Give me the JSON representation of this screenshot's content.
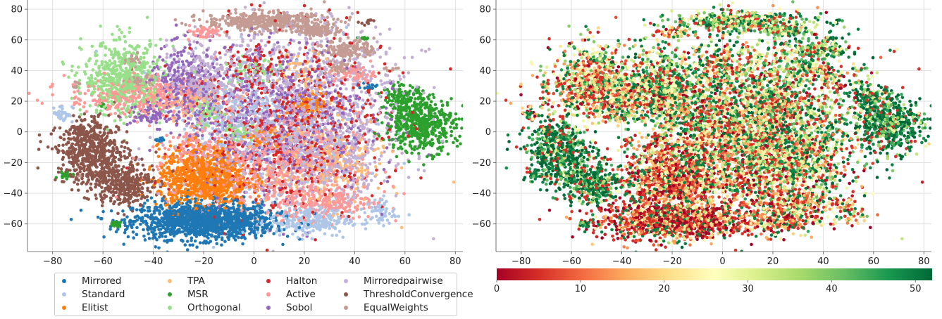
{
  "chart_data": [
    {
      "type": "scatter",
      "title": "",
      "xlabel": "",
      "ylabel": "",
      "xlim": [
        -90,
        83
      ],
      "ylim": [
        -78,
        86
      ],
      "xticks": [
        -80,
        -60,
        -40,
        -20,
        0,
        20,
        40,
        60,
        80
      ],
      "yticks": [
        -60,
        -40,
        -20,
        0,
        20,
        40,
        60,
        80
      ],
      "grid": true,
      "legend_position": "bottom",
      "series": [
        {
          "name": "Mirrored",
          "color": "#1f77b4",
          "clusters": [
            [
              -20,
              -58,
              14,
              6,
              1400
            ],
            [
              -37,
              -5,
              1.5,
              0.8,
              15
            ],
            [
              46,
              30,
              1.5,
              1,
              15
            ]
          ]
        },
        {
          "name": "Standard",
          "color": "#aec7e8",
          "clusters": [
            [
              -76,
              12,
              2,
              3,
              40
            ],
            [
              22,
              -58,
              8,
              5,
              250
            ],
            [
              5,
              0,
              20,
              25,
              300
            ],
            [
              50,
              -52,
              3,
              5,
              60
            ],
            [
              -10,
              15,
              10,
              8,
              120
            ]
          ]
        },
        {
          "name": "Elitist",
          "color": "#ff7f0e",
          "clusters": [
            [
              -20,
              -30,
              9,
              10,
              900
            ],
            [
              22,
              18,
              5,
              4,
              80
            ],
            [
              5,
              -5,
              4,
              4,
              40
            ]
          ]
        },
        {
          "name": "TPA",
          "color": "#ffbb78",
          "clusters": [
            [
              28,
              -20,
              12,
              14,
              300
            ],
            [
              -25,
              20,
              8,
              6,
              80
            ],
            [
              20,
              40,
              6,
              6,
              60
            ]
          ]
        },
        {
          "name": "MSR",
          "color": "#2ca02c",
          "clusters": [
            [
              66,
              5,
              7,
              9,
              500
            ],
            [
              59,
              22,
              4,
              4,
              120
            ],
            [
              -60,
              17,
              1,
              1,
              6
            ],
            [
              -75,
              -28,
              1.5,
              1,
              20
            ],
            [
              -55,
              -60,
              1.5,
              1,
              20
            ],
            [
              44,
              61,
              1.5,
              0.5,
              10
            ]
          ]
        },
        {
          "name": "Orthogonal",
          "color": "#98df8a",
          "clusters": [
            [
              -52,
              35,
              8,
              12,
              550
            ],
            [
              0,
              40,
              6,
              4,
              60
            ],
            [
              -18,
              12,
              4,
              5,
              60
            ],
            [
              -5,
              0,
              3,
              3,
              40
            ]
          ]
        },
        {
          "name": "Halton",
          "color": "#d62728",
          "clusters": [
            [
              12,
              5,
              20,
              30,
              700
            ],
            [
              0,
              45,
              4,
              5,
              40
            ]
          ]
        },
        {
          "name": "Active",
          "color": "#ff9896",
          "clusters": [
            [
              -44,
              23,
              15,
              6,
              400
            ],
            [
              5,
              -20,
              18,
              15,
              700
            ],
            [
              28,
              -45,
              10,
              6,
              250
            ],
            [
              -20,
              65,
              4,
              2,
              50
            ],
            [
              -25,
              -10,
              4,
              5,
              60
            ],
            [
              40,
              38,
              4,
              3,
              60
            ]
          ]
        },
        {
          "name": "Sobol",
          "color": "#9467bd",
          "clusters": [
            [
              10,
              10,
              18,
              25,
              700
            ],
            [
              -28,
              30,
              7,
              12,
              300
            ],
            [
              -42,
              10,
              4,
              3,
              50
            ]
          ]
        },
        {
          "name": "Mirroredpairwise",
          "color": "#c5b0d5",
          "clusters": [
            [
              15,
              15,
              22,
              28,
              1200
            ],
            [
              -20,
              35,
              7,
              10,
              200
            ],
            [
              30,
              -20,
              10,
              12,
              250
            ]
          ]
        },
        {
          "name": "ThresholdConvergence",
          "color": "#8c564b",
          "clusters": [
            [
              -64,
              -14,
              7,
              10,
              550
            ],
            [
              -52,
              -34,
              6,
              7,
              350
            ],
            [
              -68,
              1,
              3,
              3,
              60
            ],
            [
              -74,
              -13,
              1.5,
              1,
              15
            ],
            [
              45,
              72,
              1.5,
              1,
              10
            ]
          ]
        },
        {
          "name": "EqualWeights",
          "color": "#c49c94",
          "clusters": [
            [
              5,
              72,
              12,
              3,
              450
            ],
            [
              26,
              66,
              4,
              2,
              100
            ],
            [
              38,
              54,
              5,
              3,
              150
            ],
            [
              35,
              42,
              3,
              2,
              50
            ],
            [
              -46,
              33,
              3,
              2,
              40
            ],
            [
              -48,
              47,
              2,
              2,
              20
            ],
            [
              -70,
              31,
              1,
              1.5,
              10
            ],
            [
              -70,
              -28,
              1,
              1,
              5
            ],
            [
              55,
              41,
              1.5,
              0.5,
              10
            ]
          ]
        }
      ]
    },
    {
      "type": "scatter",
      "title": "",
      "xlabel": "",
      "ylabel": "",
      "xlim": [
        -90,
        83
      ],
      "ylim": [
        -78,
        86
      ],
      "xticks": [
        -80,
        -60,
        -40,
        -20,
        0,
        20,
        40,
        60,
        80
      ],
      "yticks": [
        -60,
        -40,
        -20,
        0,
        20,
        40,
        60,
        80
      ],
      "grid": true,
      "colorbar": {
        "colormap": "RdYlGn",
        "range": [
          0,
          52
        ],
        "ticks": [
          "0",
          "10",
          "20",
          "30",
          "40",
          "50"
        ],
        "position": "bottom",
        "stops": [
          "#a50026",
          "#d73027",
          "#f46d43",
          "#fdae61",
          "#fee08b",
          "#ffffbf",
          "#d9ef8b",
          "#a6d96a",
          "#66bd63",
          "#1a9850",
          "#006837"
        ]
      }
    }
  ]
}
